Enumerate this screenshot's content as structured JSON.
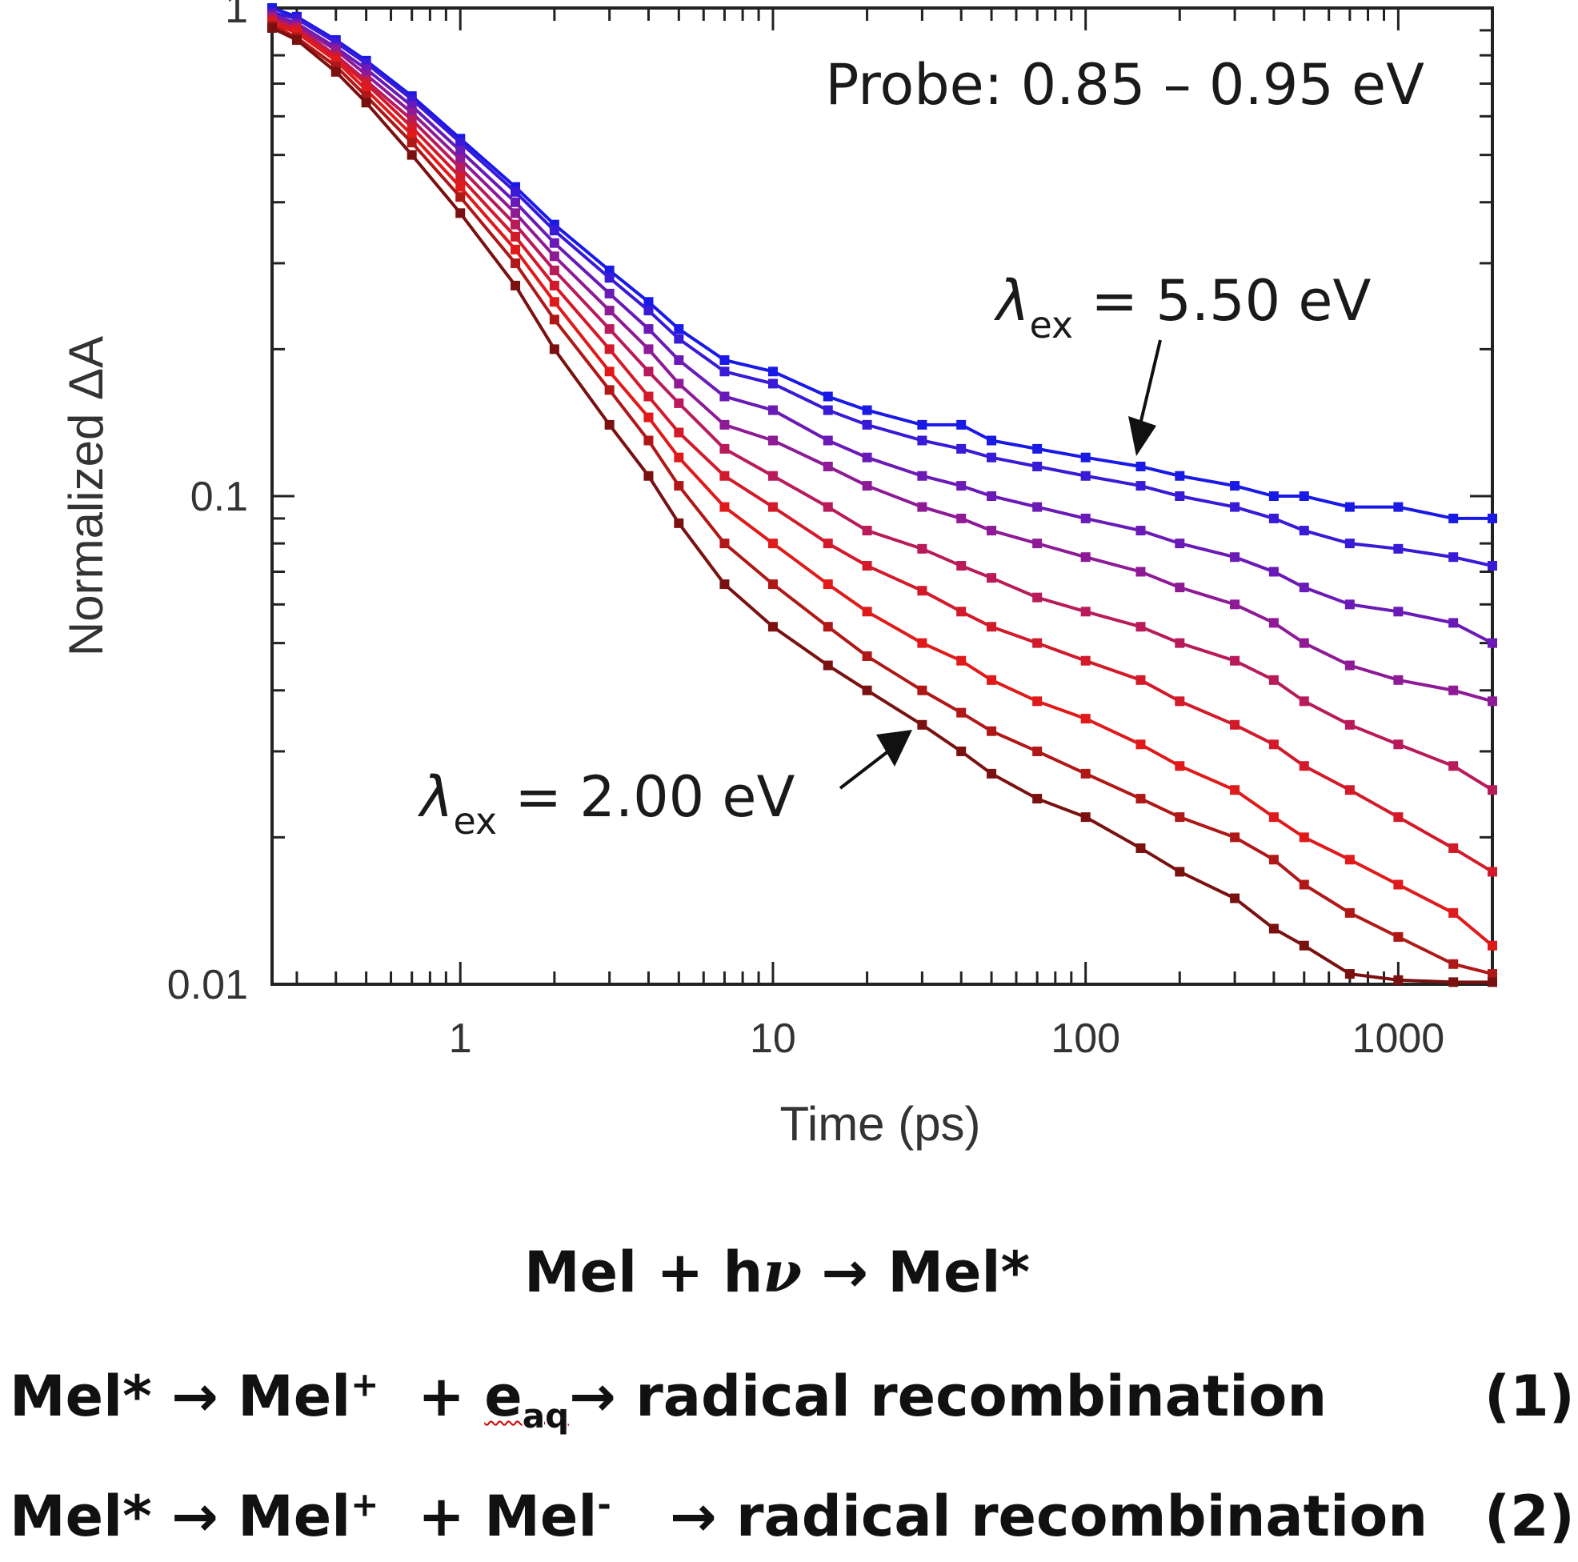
{
  "chart_data": {
    "type": "line",
    "x_scale": "log",
    "y_scale": "log",
    "xlim": [
      0.25,
      2000
    ],
    "ylim": [
      0.01,
      1
    ],
    "xlabel": "Time (ps)",
    "ylabel": "Normalized ΔA",
    "x_ticks": [
      {
        "value": 1,
        "label": "1"
      },
      {
        "value": 10,
        "label": "10"
      },
      {
        "value": 100,
        "label": "100"
      },
      {
        "value": 1000,
        "label": "1000"
      }
    ],
    "y_ticks": [
      {
        "value": 1,
        "label": "1"
      },
      {
        "value": 0.1,
        "label": "0.1"
      },
      {
        "value": 0.01,
        "label": "0.01"
      }
    ],
    "grid": false,
    "x": [
      0.25,
      0.3,
      0.4,
      0.5,
      0.7,
      1,
      1.5,
      2,
      3,
      4,
      5,
      7,
      10,
      15,
      20,
      30,
      40,
      50,
      70,
      100,
      150,
      200,
      300,
      400,
      500,
      700,
      1000,
      1500,
      2000
    ],
    "series": [
      {
        "color": "#1a1ae6",
        "values": [
          1.0,
          0.96,
          0.86,
          0.78,
          0.66,
          0.54,
          0.43,
          0.36,
          0.29,
          0.25,
          0.22,
          0.19,
          0.18,
          0.16,
          0.15,
          0.14,
          0.14,
          0.13,
          0.125,
          0.12,
          0.115,
          0.11,
          0.105,
          0.1,
          0.1,
          0.095,
          0.095,
          0.09,
          0.09
        ]
      },
      {
        "color": "#3a1ad6",
        "values": [
          0.98,
          0.95,
          0.85,
          0.77,
          0.65,
          0.53,
          0.42,
          0.35,
          0.28,
          0.24,
          0.21,
          0.18,
          0.17,
          0.15,
          0.14,
          0.13,
          0.125,
          0.12,
          0.115,
          0.11,
          0.105,
          0.1,
          0.095,
          0.09,
          0.085,
          0.08,
          0.078,
          0.075,
          0.072
        ]
      },
      {
        "color": "#6a1ab6",
        "values": [
          0.97,
          0.93,
          0.83,
          0.75,
          0.63,
          0.51,
          0.4,
          0.33,
          0.26,
          0.22,
          0.19,
          0.16,
          0.15,
          0.13,
          0.12,
          0.11,
          0.105,
          0.1,
          0.095,
          0.09,
          0.085,
          0.08,
          0.075,
          0.07,
          0.065,
          0.06,
          0.058,
          0.055,
          0.05
        ]
      },
      {
        "color": "#8e1a96",
        "values": [
          0.96,
          0.92,
          0.82,
          0.73,
          0.61,
          0.49,
          0.38,
          0.31,
          0.24,
          0.2,
          0.17,
          0.14,
          0.13,
          0.115,
          0.105,
          0.095,
          0.09,
          0.085,
          0.08,
          0.075,
          0.07,
          0.065,
          0.06,
          0.055,
          0.05,
          0.045,
          0.042,
          0.04,
          0.038
        ]
      },
      {
        "color": "#b81a5a",
        "values": [
          0.95,
          0.91,
          0.8,
          0.71,
          0.59,
          0.47,
          0.36,
          0.29,
          0.22,
          0.18,
          0.155,
          0.125,
          0.11,
          0.095,
          0.085,
          0.078,
          0.072,
          0.068,
          0.062,
          0.058,
          0.054,
          0.05,
          0.046,
          0.042,
          0.038,
          0.034,
          0.031,
          0.028,
          0.025
        ]
      },
      {
        "color": "#d21a2a",
        "values": [
          0.94,
          0.9,
          0.79,
          0.7,
          0.57,
          0.45,
          0.34,
          0.27,
          0.2,
          0.16,
          0.135,
          0.11,
          0.095,
          0.08,
          0.072,
          0.064,
          0.058,
          0.054,
          0.05,
          0.046,
          0.042,
          0.038,
          0.034,
          0.031,
          0.028,
          0.025,
          0.022,
          0.019,
          0.017
        ]
      },
      {
        "color": "#e01a1a",
        "values": [
          0.93,
          0.89,
          0.78,
          0.68,
          0.55,
          0.43,
          0.32,
          0.25,
          0.18,
          0.145,
          0.12,
          0.095,
          0.08,
          0.066,
          0.058,
          0.05,
          0.046,
          0.042,
          0.038,
          0.035,
          0.031,
          0.028,
          0.025,
          0.022,
          0.02,
          0.018,
          0.016,
          0.014,
          0.012
        ]
      },
      {
        "color": "#b01818",
        "values": [
          0.92,
          0.87,
          0.76,
          0.66,
          0.53,
          0.41,
          0.3,
          0.23,
          0.165,
          0.13,
          0.105,
          0.08,
          0.066,
          0.054,
          0.047,
          0.04,
          0.036,
          0.033,
          0.03,
          0.027,
          0.024,
          0.022,
          0.02,
          0.018,
          0.016,
          0.014,
          0.0125,
          0.011,
          0.0105
        ]
      },
      {
        "color": "#7a1010",
        "values": [
          0.91,
          0.86,
          0.74,
          0.64,
          0.5,
          0.38,
          0.27,
          0.2,
          0.14,
          0.11,
          0.088,
          0.066,
          0.054,
          0.045,
          0.04,
          0.034,
          0.03,
          0.027,
          0.024,
          0.022,
          0.019,
          0.017,
          0.015,
          0.013,
          0.012,
          0.0105,
          0.0102,
          0.0101,
          0.0101
        ]
      }
    ],
    "annotations": {
      "probe": "Probe: 0.85 – 0.95 eV",
      "high": {
        "symbol": "λ",
        "sub": "ex",
        "text": " = 5.50 eV"
      },
      "low": {
        "symbol": "λ",
        "sub": "ex",
        "text": " = 2.00 eV"
      }
    }
  },
  "equations": {
    "eq0": {
      "lhs": "Mel + h",
      "nu": "ν",
      "arrow": "→",
      "rhs": "Mel*"
    },
    "eq1": {
      "a": "Mel*",
      "arrow1": "→",
      "b": "Mel",
      "b_sup": "+",
      "plus": "+",
      "c": "e",
      "c_sub": "aq",
      "arrow2": "→",
      "d": "radical recombination",
      "num": "(1)"
    },
    "eq2": {
      "a": "Mel*",
      "arrow1": "→",
      "b": "Mel",
      "b_sup": "+",
      "plus": "+",
      "c": "Mel",
      "c_sup": "-",
      "arrow2": "→",
      "d": "radical recombination",
      "num": "(2)"
    }
  }
}
